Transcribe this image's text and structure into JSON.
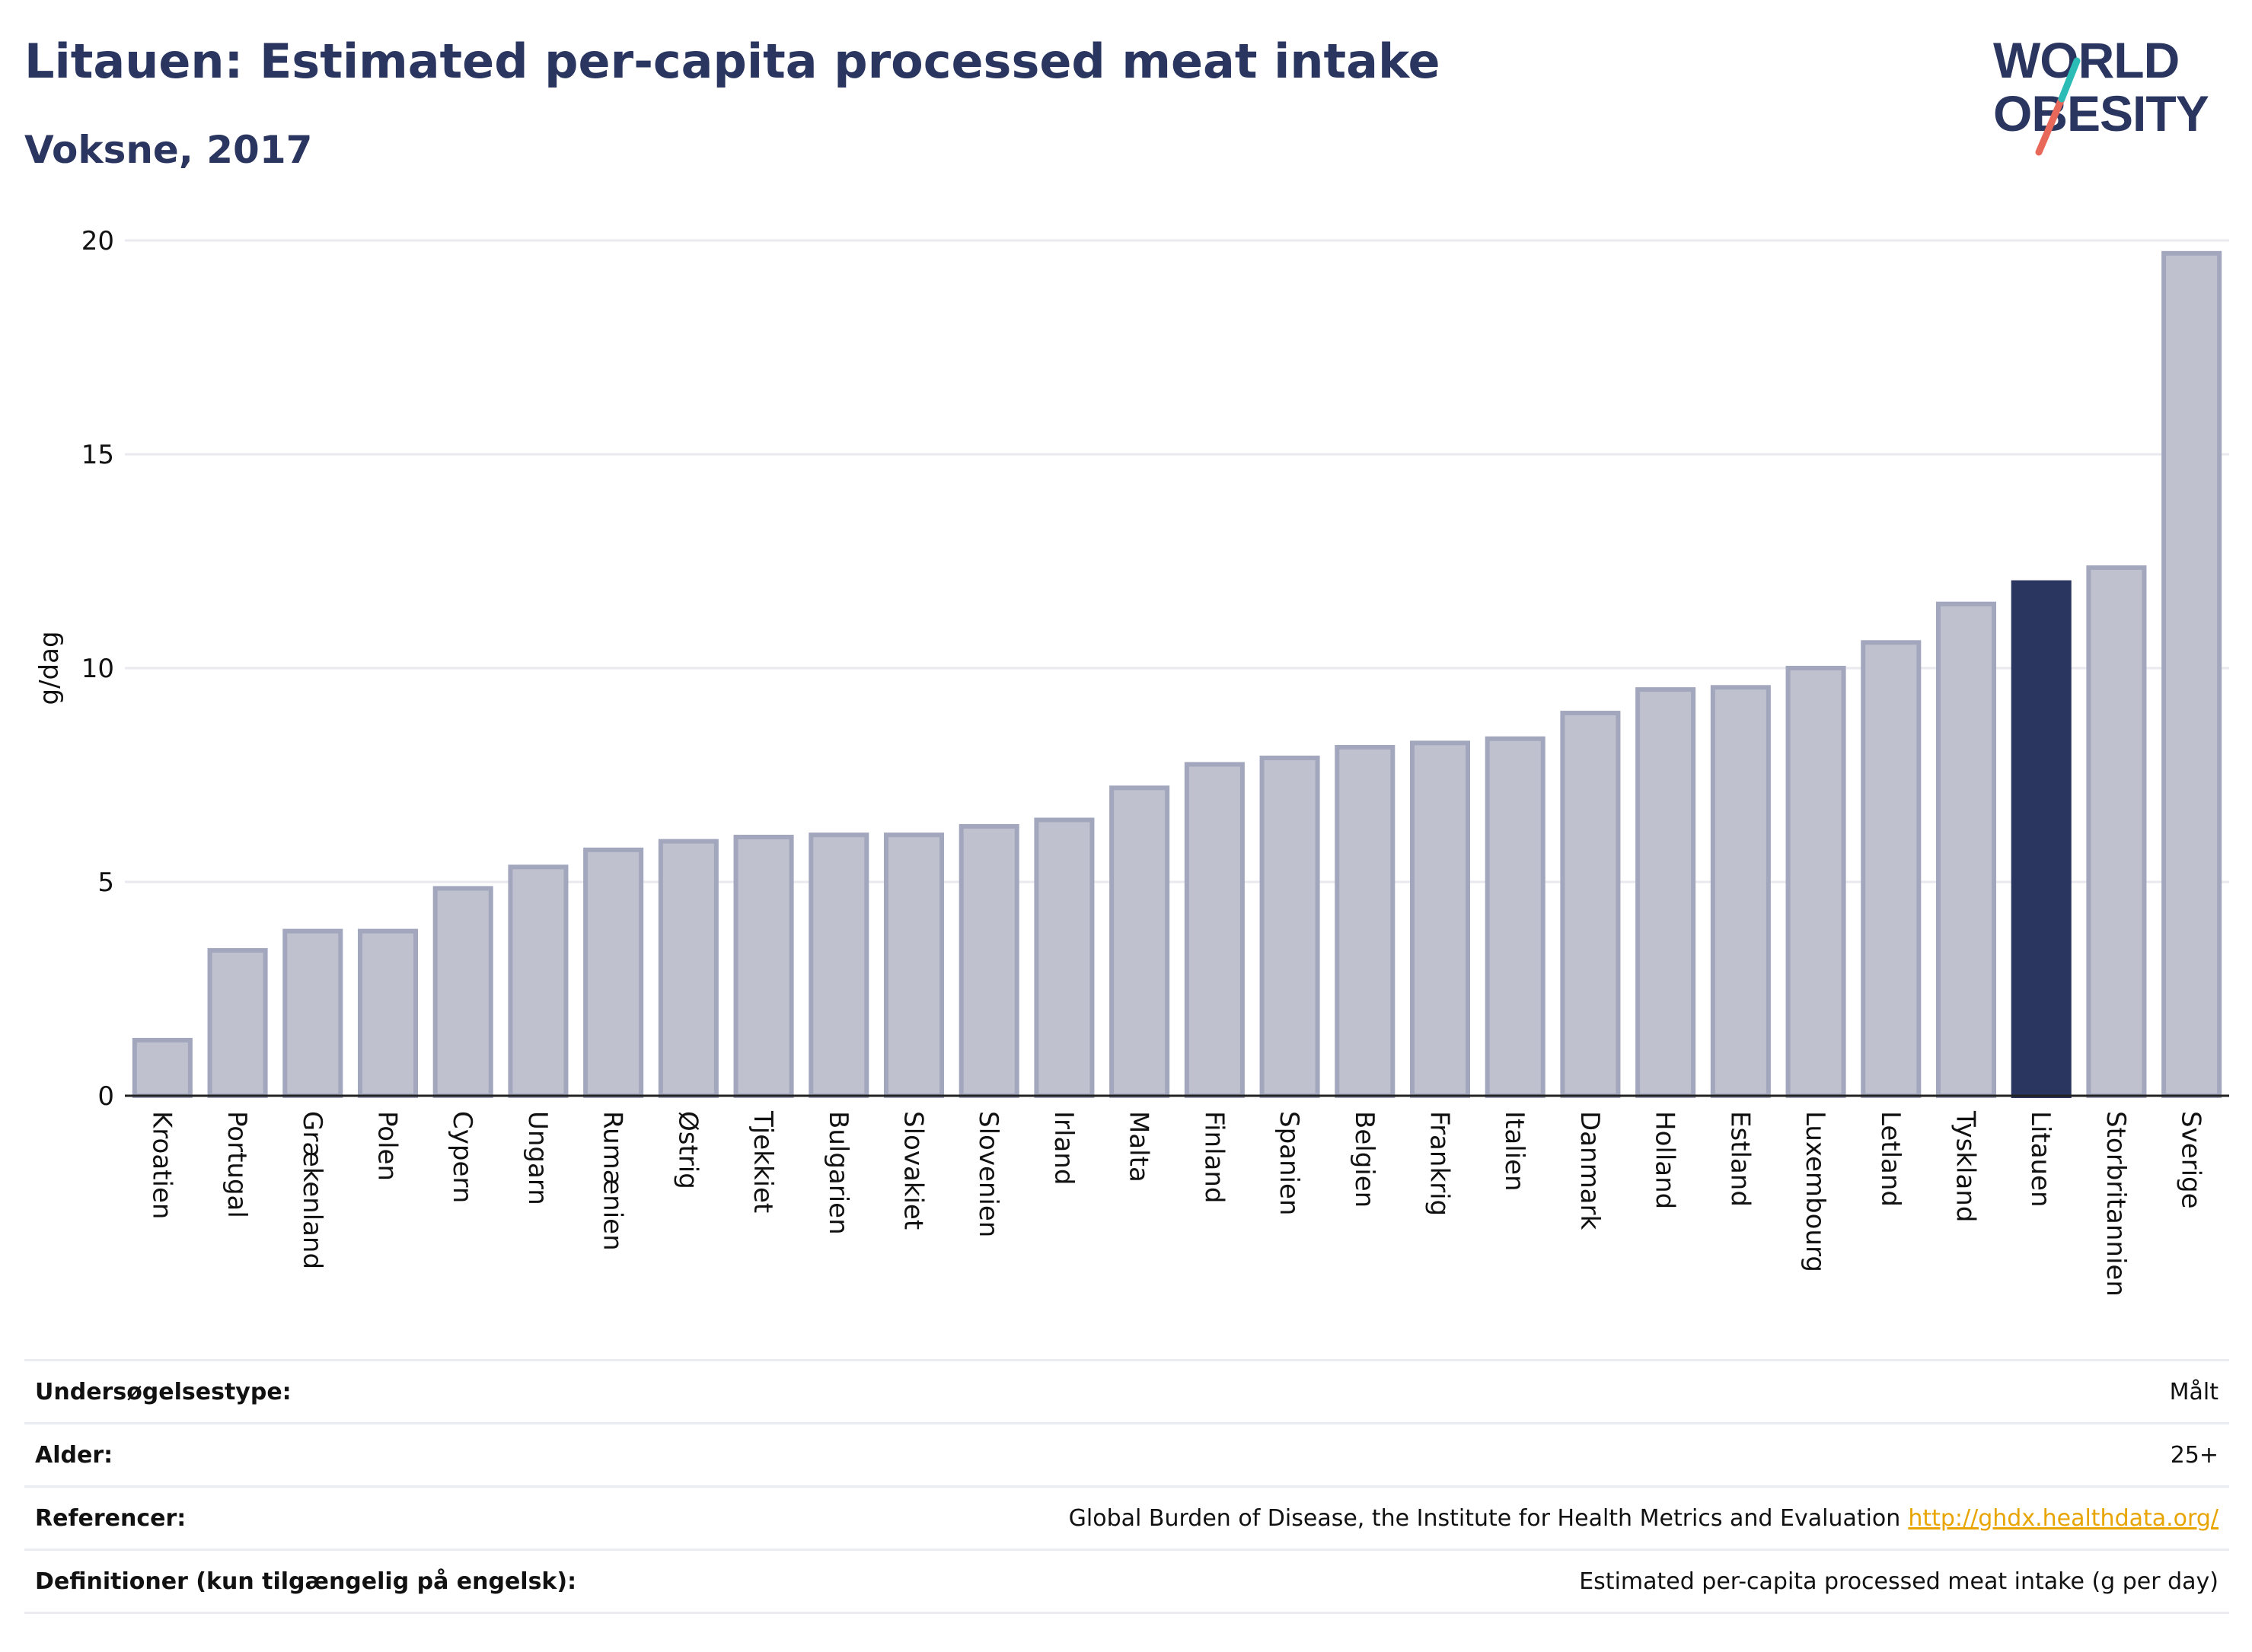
{
  "header": {
    "title": "Litauen: Estimated per-capita processed meat intake",
    "subtitle": "Voksne, 2017"
  },
  "logo": {
    "line1": "WORLD",
    "line2": "OBESITY",
    "colors": {
      "text": "#2b3660",
      "slash_teal": "#2bbcb5",
      "slash_coral": "#e8685a"
    }
  },
  "chart_data": {
    "type": "bar",
    "ylabel": "g/dag",
    "xlabel": "",
    "ylim": [
      0,
      20
    ],
    "yticks": [
      0,
      5,
      10,
      15,
      20
    ],
    "grid": true,
    "highlight": "Litauen",
    "colors": {
      "bar": "#bfc1ce",
      "bar_border": "#a3a7bd",
      "highlight": "#2b3660",
      "grid": "#e9e9ef",
      "baseline": "#222222"
    },
    "categories": [
      "Kroatien",
      "Portugal",
      "Grækenland",
      "Polen",
      "Cypern",
      "Ungarn",
      "Rumænien",
      "Østrig",
      "Tjekkiet",
      "Bulgarien",
      "Slovakiet",
      "Slovenien",
      "Irland",
      "Malta",
      "Finland",
      "Spanien",
      "Belgien",
      "Frankrig",
      "Italien",
      "Danmark",
      "Holland",
      "Estland",
      "Luxembourg",
      "Letland",
      "Tyskland",
      "Litauen",
      "Storbritannien",
      "Sverige"
    ],
    "values": [
      1.3,
      3.4,
      3.85,
      3.85,
      4.85,
      5.35,
      5.75,
      5.95,
      6.05,
      6.1,
      6.1,
      6.3,
      6.45,
      7.2,
      7.75,
      7.9,
      8.15,
      8.25,
      8.35,
      8.95,
      9.5,
      9.55,
      10.0,
      10.6,
      11.5,
      12.0,
      12.35,
      19.7
    ]
  },
  "info": {
    "rows": [
      {
        "label": "Undersøgelsestype:",
        "value": "Målt",
        "link": ""
      },
      {
        "label": "Alder:",
        "value": "25+",
        "link": ""
      },
      {
        "label": "Referencer:",
        "value": "Global Burden of Disease, the Institute for Health Metrics and Evaluation",
        "link": "http://ghdx.healthdata.org/"
      },
      {
        "label": "Definitioner (kun tilgængelig på engelsk):",
        "value": "Estimated per-capita processed meat intake (g per day)",
        "link": ""
      }
    ]
  }
}
